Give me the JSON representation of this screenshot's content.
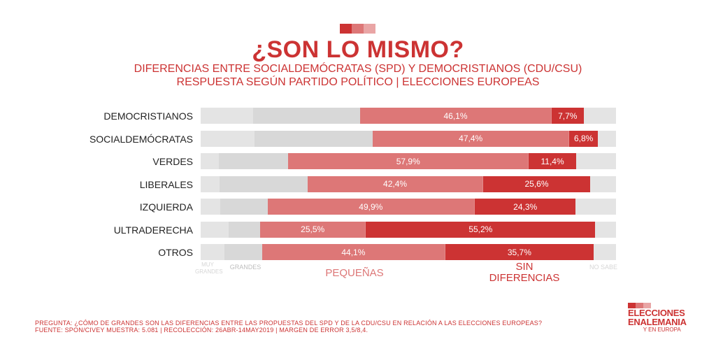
{
  "header": {
    "squares": [
      "#cc3333",
      "#dd7777",
      "#e9a5a5"
    ],
    "title": "¿SON LO MISMO?",
    "subtitle_line1": "DIFERENCIAS ENTRE SOCIALDEMÓCRATAS (SPD) Y DEMOCRISTIANOS (CDU/CSU)",
    "subtitle_line2": "RESPUESTA SEGÚN PARTIDO POLÍTICO | ELECCIONES EUROPEAS"
  },
  "colors": {
    "muy_grandes": "#e4e4e4",
    "grandes": "#d8d8d8",
    "pequenas": "#dd7777",
    "sin_diferencias": "#cc3333",
    "no_sabe": "#e4e4e4",
    "accent": "#cc3333"
  },
  "chart_data": {
    "type": "bar",
    "orientation": "horizontal-stacked-100",
    "title": "¿SON LO MISMO?",
    "subtitle": "DIFERENCIAS ENTRE SOCIALDEMÓCRATAS (SPD) Y DEMOCRISTIANOS (CDU/CSU) — RESPUESTA SEGÚN PARTIDO POLÍTICO | ELECCIONES EUROPEAS",
    "categories": [
      "DEMOCRISTIANOS",
      "SOCIALDEMÓCRATAS",
      "VERDES",
      "LIBERALES",
      "IZQUIERDA",
      "ULTRADERECHA",
      "OTROS"
    ],
    "series": [
      {
        "key": "muy_grandes",
        "name": "MUY GRANDES",
        "values": [
          12.6,
          13.0,
          4.4,
          4.5,
          4.7,
          6.7,
          5.7
        ],
        "labeled": false
      },
      {
        "key": "grandes",
        "name": "GRANDES",
        "values": [
          25.8,
          28.4,
          16.7,
          21.2,
          11.4,
          7.6,
          9.1
        ],
        "labeled": false
      },
      {
        "key": "pequenas",
        "name": "PEQUEÑAS",
        "values": [
          46.1,
          47.4,
          57.9,
          42.4,
          49.9,
          25.5,
          44.1
        ],
        "labeled": true,
        "labels": [
          "46,1%",
          "47,4%",
          "57,9%",
          "42,4%",
          "49,9%",
          "25,5%",
          "44,1%"
        ]
      },
      {
        "key": "sin_diferencias",
        "name": "SIN DIFERENCIAS",
        "values": [
          7.7,
          6.8,
          11.4,
          25.6,
          24.3,
          55.2,
          35.7
        ],
        "labeled": true,
        "labels": [
          "7,7%",
          "6,8%",
          "11,4%",
          "25,6%",
          "24,3%",
          "55,2%",
          "35,7%"
        ]
      },
      {
        "key": "no_sabe",
        "name": "NO SABE",
        "values": [
          7.8,
          4.4,
          9.6,
          6.3,
          9.7,
          5.0,
          5.4
        ],
        "labeled": false
      }
    ],
    "xlim": [
      0,
      100
    ],
    "legend": {
      "placement": "bottom",
      "entries": [
        "MUY GRANDES",
        "GRANDES",
        "PEQUEÑAS",
        "SIN DIFERENCIAS",
        "NO SABE"
      ]
    }
  },
  "legend_labels": {
    "muy_grandes_1": "MUY",
    "muy_grandes_2": "GRANDES",
    "grandes": "GRANDES",
    "pequenas": "PEQUEÑAS",
    "sin_dif_1": "SIN",
    "sin_dif_2": "DIFERENCIAS",
    "no_sabe": "NO SABE"
  },
  "footer": {
    "question": "PREGUNTA: ¿CÓMO DE GRANDES SON LAS DIFERENCIAS ENTRE LAS PROPUESTAS DEL SPD Y DE LA CDU/CSU EN RELACIÓN A LAS ELECCIONES EUROPEAS?",
    "source": "FUENTE: SPON/CIVEY MUESTRA: 5.081 | RECOLECCIÓN: 26ABR-14MAY2019 | MARGEN DE ERROR 3,5/8,4."
  },
  "brand": {
    "line1": "ELECCIONES",
    "line2": "ENALEMANIA",
    "line3": "Y EN EUROPA"
  }
}
